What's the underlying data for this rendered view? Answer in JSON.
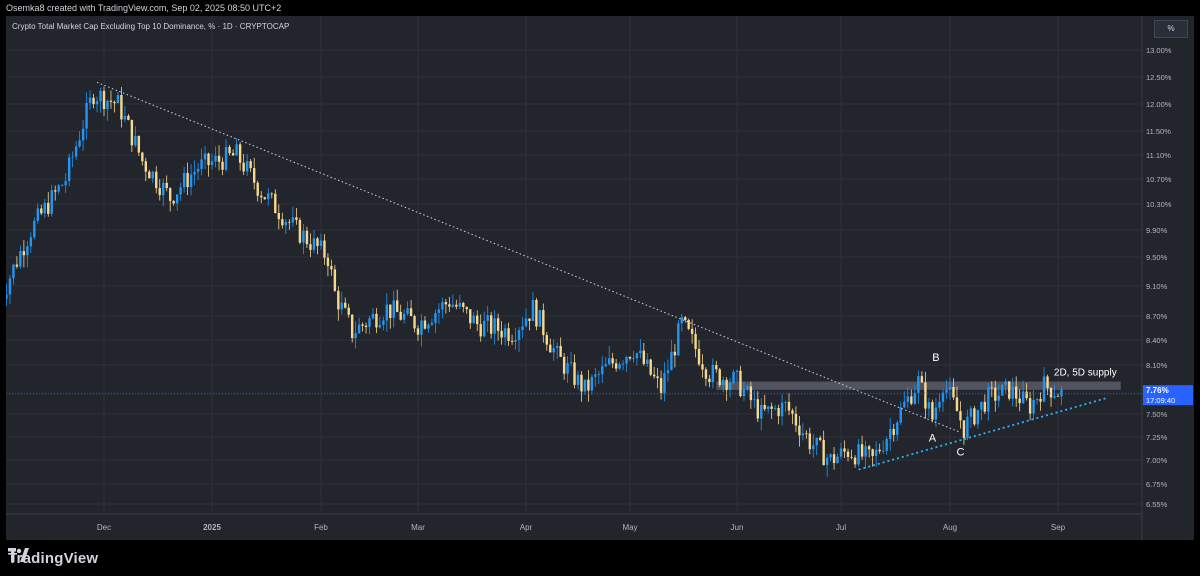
{
  "header": {
    "attribution": "Osemka8 created with TradingView.com, Sep 02, 2025 08:50 UTC+2"
  },
  "footer": {
    "brand": "TradingView"
  },
  "colors": {
    "up": "#2196f3",
    "down": "#f7d98c",
    "background": "#23252d",
    "grid": "#2e313a",
    "price_marker": "#2962ff"
  },
  "chart_data": {
    "type": "candlestick",
    "title": "Crypto Total Market Cap Excluding Top 10 Dominance, % · 1D · CRYPTOCAP",
    "unit": "%",
    "y_ticks": [
      "13.00%",
      "12.50%",
      "12.00%",
      "11.50%",
      "11.10%",
      "10.70%",
      "10.30%",
      "9.90%",
      "9.50%",
      "9.10%",
      "8.70%",
      "8.40%",
      "8.10%",
      "7.75%",
      "7.50%",
      "7.25%",
      "7.00%",
      "6.75%",
      "6.55%"
    ],
    "x_ticks": [
      "Dec",
      "2025",
      "Feb",
      "Mar",
      "Apr",
      "May",
      "Jun",
      "Jul",
      "Aug",
      "Sep"
    ],
    "ylim": [
      6.5,
      13.2
    ],
    "current_price": {
      "value": "7.76%",
      "countdown": "17:09:40"
    },
    "price_path": [
      [
        "2024-11-01",
        8.9
      ],
      [
        "2024-11-10",
        9.9
      ],
      [
        "2024-11-20",
        10.7
      ],
      [
        "2024-11-28",
        12.2
      ],
      [
        "2024-12-05",
        12.0
      ],
      [
        "2024-12-12",
        11.0
      ],
      [
        "2024-12-20",
        10.4
      ],
      [
        "2024-12-28",
        10.9
      ],
      [
        "2025-01-08",
        11.1
      ],
      [
        "2025-01-15",
        10.5
      ],
      [
        "2025-01-25",
        9.9
      ],
      [
        "2025-02-03",
        9.5
      ],
      [
        "2025-02-05",
        9.0
      ],
      [
        "2025-02-10",
        8.5
      ],
      [
        "2025-02-20",
        8.8
      ],
      [
        "2025-03-01",
        8.6
      ],
      [
        "2025-03-10",
        8.9
      ],
      [
        "2025-03-18",
        8.6
      ],
      [
        "2025-03-28",
        8.5
      ],
      [
        "2025-04-03",
        8.8
      ],
      [
        "2025-04-10",
        8.2
      ],
      [
        "2025-04-18",
        7.8
      ],
      [
        "2025-04-25",
        8.1
      ],
      [
        "2025-05-02",
        8.3
      ],
      [
        "2025-05-10",
        7.8
      ],
      [
        "2025-05-16",
        8.6
      ],
      [
        "2025-05-24",
        8.0
      ],
      [
        "2025-06-01",
        7.9
      ],
      [
        "2025-06-08",
        7.5
      ],
      [
        "2025-06-15",
        7.6
      ],
      [
        "2025-06-22",
        7.2
      ],
      [
        "2025-06-28",
        7.0
      ],
      [
        "2025-07-03",
        7.1
      ],
      [
        "2025-07-10",
        7.0
      ],
      [
        "2025-07-16",
        7.4
      ],
      [
        "2025-07-23",
        7.9
      ],
      [
        "2025-07-27",
        7.45
      ],
      [
        "2025-07-30",
        7.9
      ],
      [
        "2025-08-05",
        7.35
      ],
      [
        "2025-08-12",
        7.7
      ],
      [
        "2025-08-18",
        7.8
      ],
      [
        "2025-08-24",
        7.6
      ],
      [
        "2025-08-28",
        7.85
      ],
      [
        "2025-09-02",
        7.76
      ]
    ],
    "drawings": {
      "downtrend_line": {
        "from": [
          "2024-11-29",
          12.4
        ],
        "to": [
          "2025-08-04",
          7.3
        ]
      },
      "uptrend_line": {
        "from": [
          "2025-07-06",
          6.9
        ],
        "to": [
          "2025-09-15",
          7.7
        ]
      },
      "supply_zone": {
        "label": "2D, 5D supply",
        "y_low": 7.8,
        "y_high": 7.9,
        "from": "2025-05-26",
        "to": "2025-09-19"
      },
      "points": [
        {
          "label": "A",
          "date": "2025-07-27",
          "value": 7.2
        },
        {
          "label": "B",
          "date": "2025-07-28",
          "value": 8.15
        },
        {
          "label": "C",
          "date": "2025-08-04",
          "value": 7.05
        }
      ]
    }
  }
}
